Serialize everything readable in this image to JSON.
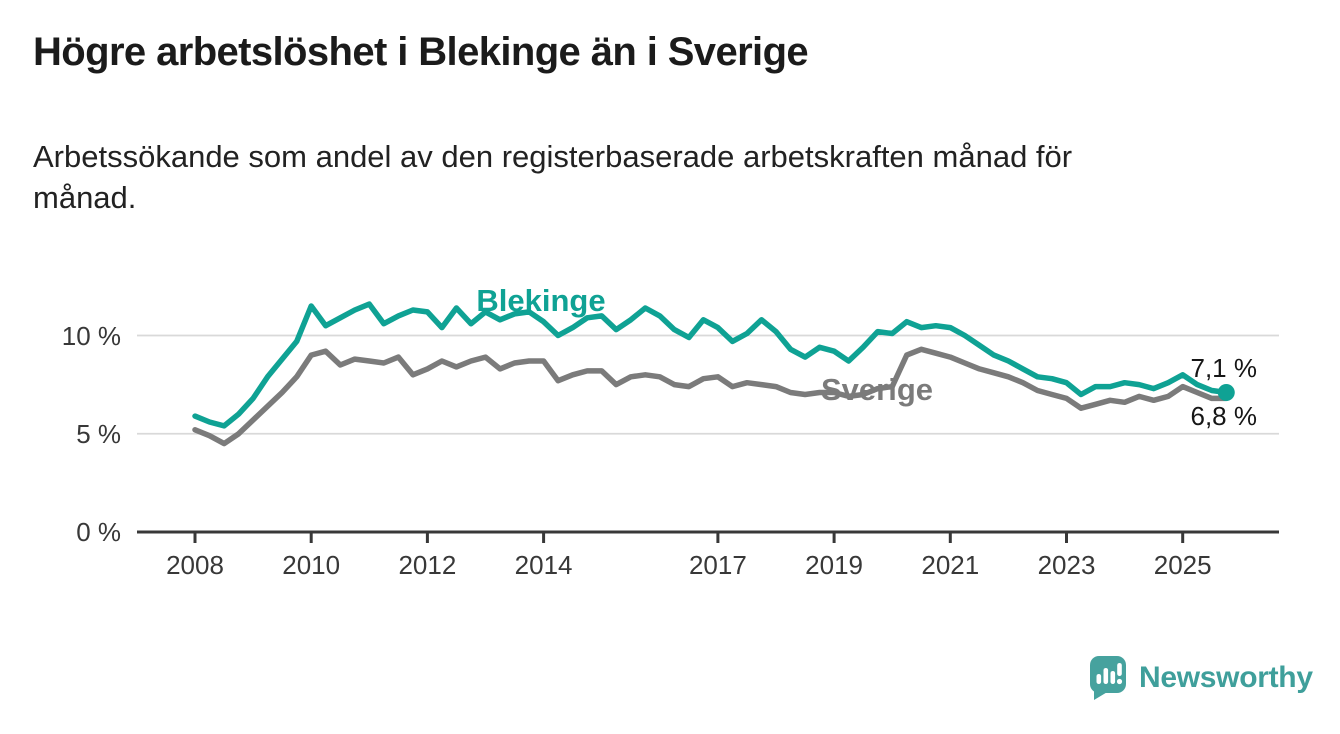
{
  "header": {
    "title": "Högre arbetslöshet i Blekinge än i Sverige",
    "subtitle_lines": [
      "Arbetssökande som andel av den registerbaserade arbetskraften månad för",
      "månad."
    ]
  },
  "chart_data": {
    "type": "line",
    "unit": "%",
    "x_start": 2008,
    "x_step_years": 0.25,
    "xlim": [
      2008,
      2025.75
    ],
    "ylim": [
      0,
      12.5
    ],
    "grid": "horizontal",
    "legend_position": "inline-labels",
    "x_ticks": [
      {
        "label": "2008",
        "year": 2008
      },
      {
        "label": "2010",
        "year": 2010
      },
      {
        "label": "2012",
        "year": 2012
      },
      {
        "label": "2014",
        "year": 2014
      },
      {
        "label": "2017",
        "year": 2017
      },
      {
        "label": "2019",
        "year": 2019
      },
      {
        "label": "2021",
        "year": 2021
      },
      {
        "label": "2023",
        "year": 2023
      },
      {
        "label": "2025",
        "year": 2025
      }
    ],
    "y_ticks": [
      {
        "label": "10 %",
        "value": 10
      },
      {
        "label": "5 %",
        "value": 5
      },
      {
        "label": "0 %",
        "value": 0
      }
    ],
    "series": [
      {
        "name": "Blekinge",
        "color": "#0fa294",
        "end_label": "7,1 %",
        "end_value": 7.1,
        "end_dot": true,
        "values": [
          5.9,
          5.6,
          5.4,
          6.0,
          6.8,
          7.9,
          8.8,
          9.7,
          11.5,
          10.5,
          10.9,
          11.3,
          11.6,
          10.6,
          11.0,
          11.3,
          11.2,
          10.4,
          11.4,
          10.6,
          11.2,
          10.8,
          11.1,
          11.2,
          10.7,
          10.0,
          10.4,
          10.9,
          11.0,
          10.3,
          10.8,
          11.4,
          11.0,
          10.3,
          9.9,
          10.8,
          10.4,
          9.7,
          10.1,
          10.8,
          10.2,
          9.3,
          8.9,
          9.4,
          9.2,
          8.7,
          9.4,
          10.2,
          10.1,
          10.7,
          10.4,
          10.5,
          10.4,
          10.0,
          9.5,
          9.0,
          8.7,
          8.3,
          7.9,
          7.8,
          7.6,
          7.0,
          7.4,
          7.4,
          7.6,
          7.5,
          7.3,
          7.6,
          8.0,
          7.5,
          7.2,
          7.1
        ]
      },
      {
        "name": "Sverige",
        "color": "#7b7b7b",
        "end_label": "6,8 %",
        "end_value": 6.8,
        "end_dot": false,
        "values": [
          5.2,
          4.9,
          4.5,
          5.0,
          5.7,
          6.4,
          7.1,
          7.9,
          9.0,
          9.2,
          8.5,
          8.8,
          8.7,
          8.6,
          8.9,
          8.0,
          8.3,
          8.7,
          8.4,
          8.7,
          8.9,
          8.3,
          8.6,
          8.7,
          8.7,
          7.7,
          8.0,
          8.2,
          8.2,
          7.5,
          7.9,
          8.0,
          7.9,
          7.5,
          7.4,
          7.8,
          7.9,
          7.4,
          7.6,
          7.5,
          7.4,
          7.1,
          7.0,
          7.1,
          7.1,
          6.9,
          7.0,
          7.3,
          7.4,
          9.0,
          9.3,
          9.1,
          8.9,
          8.6,
          8.3,
          8.1,
          7.9,
          7.6,
          7.2,
          7.0,
          6.8,
          6.3,
          6.5,
          6.7,
          6.6,
          6.9,
          6.7,
          6.9,
          7.4,
          7.1,
          6.8,
          6.8
        ]
      }
    ]
  },
  "footer": {
    "brand": "Newsworthy",
    "logo_icon": "bar-chart-speech-bubble-icon"
  },
  "colors": {
    "blekinge_line": "#0fa294",
    "sverige_line": "#7b7b7b",
    "gridline": "#d9d9d9",
    "axis": "#383838",
    "title_text": "#1b1b1b",
    "logo_teal": "#46a29e"
  }
}
